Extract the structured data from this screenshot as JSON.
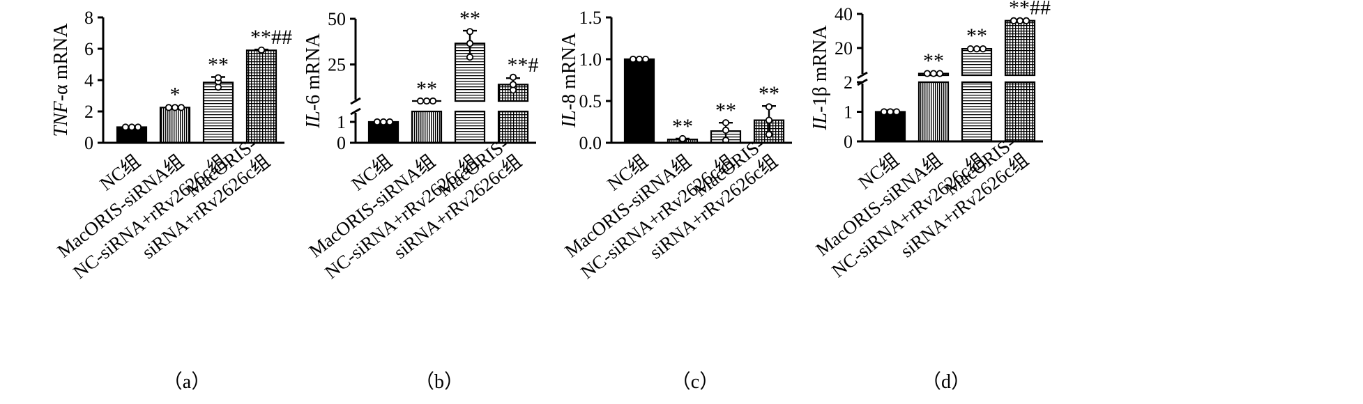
{
  "chart_data": [
    {
      "type": "bar",
      "panel_label": "（a）",
      "ylabel": {
        "italic": "TNF",
        "rest": "-α mRNA"
      },
      "categories": [
        "NC组",
        "MacORIS-siRNA组",
        "NC-siRNA+rRv2626c组",
        "MacORIS-siRNA+rRv2626c组"
      ],
      "category_lines": [
        [
          "NC组"
        ],
        [
          "MacORIS-siRNA组"
        ],
        [
          "NC-siRNA+rRv2626c组"
        ],
        [
          "MacORIS-",
          "siRNA+rRv2626c组"
        ]
      ],
      "values": [
        1.0,
        2.25,
        3.85,
        5.9
      ],
      "errors": [
        0.05,
        0.05,
        0.35,
        0.05
      ],
      "points": [
        [
          1.0,
          1.0,
          1.0
        ],
        [
          2.25,
          2.25,
          2.25
        ],
        [
          3.55,
          3.9,
          4.15
        ],
        [
          5.88,
          5.9,
          5.92
        ]
      ],
      "significance": [
        "",
        "*",
        "**",
        "**##"
      ],
      "ylim": [
        0,
        8
      ],
      "yticks": [
        0,
        2,
        4,
        6,
        8
      ],
      "ytick_labels": [
        "0",
        "2",
        "4",
        "6",
        "8"
      ]
    },
    {
      "type": "bar",
      "panel_label": "（b）",
      "ylabel": {
        "italic": "IL",
        "rest": "-6 mRNA"
      },
      "categories": [
        "NC组",
        "MacORIS-siRNA组",
        "NC-siRNA+rRv2626c组",
        "MacORIS-siRNA+rRv2626c组"
      ],
      "category_lines": [
        [
          "NC组"
        ],
        [
          "MacORIS-siRNA组"
        ],
        [
          "NC-siRNA+rRv2626c组"
        ],
        [
          "MacORIS-",
          "siRNA+rRv2626c组"
        ]
      ],
      "values": [
        1.0,
        4.5,
        36.5,
        14.0
      ],
      "errors": [
        0.05,
        0.3,
        7.0,
        3.5
      ],
      "points": [
        [
          1.0,
          1.0,
          1.0
        ],
        [
          4.5,
          4.5,
          4.5
        ],
        [
          29.0,
          36.5,
          43.0
        ],
        [
          11.0,
          14.0,
          18.0
        ]
      ],
      "significance": [
        "",
        "**",
        "**",
        "**#"
      ],
      "axis_break": {
        "lower": [
          0,
          1.5
        ],
        "upper": [
          5,
          50
        ]
      },
      "yticks": [
        0,
        1,
        25,
        50
      ],
      "ytick_labels": [
        "0",
        "1",
        "25",
        "50"
      ]
    },
    {
      "type": "bar",
      "panel_label": "（c）",
      "ylabel": {
        "italic": "IL",
        "rest": "-8 mRNA"
      },
      "categories": [
        "NC组",
        "MacORIS-siRNA组",
        "NC-siRNA+rRv2626c组",
        "MacORIS-siRNA+rRv2626c组"
      ],
      "category_lines": [
        [
          "NC组"
        ],
        [
          "MacORIS-siRNA组"
        ],
        [
          "NC-siRNA+rRv2626c组"
        ],
        [
          "MacORIS-",
          "siRNA+rRv2626c组"
        ]
      ],
      "values": [
        1.0,
        0.04,
        0.14,
        0.27
      ],
      "errors": [
        0.0,
        0.01,
        0.1,
        0.17
      ],
      "points": [
        [
          1.0,
          1.0,
          1.0
        ],
        [
          0.03,
          0.04,
          0.05
        ],
        [
          0.03,
          0.15,
          0.24
        ],
        [
          0.1,
          0.27,
          0.43
        ]
      ],
      "significance": [
        "",
        "**",
        "**",
        "**"
      ],
      "ylim": [
        0,
        1.5
      ],
      "yticks": [
        0,
        0.5,
        1.0,
        1.5
      ],
      "ytick_labels": [
        "0.0",
        "0.5",
        "1.0",
        "1.5"
      ]
    },
    {
      "type": "bar",
      "panel_label": "（d）",
      "ylabel": {
        "italic": "IL",
        "rest": "-1β mRNA"
      },
      "categories": [
        "NC组",
        "MacORIS-siRNA组",
        "NC-siRNA+rRv2626c组",
        "MacORIS-siRNA+rRv2626c组"
      ],
      "category_lines": [
        [
          "NC组"
        ],
        [
          "MacORIS-siRNA组"
        ],
        [
          "NC-siRNA+rRv2626c组"
        ],
        [
          "MacORIS-",
          "siRNA+rRv2626c组"
        ]
      ],
      "values": [
        1.0,
        5.0,
        19.5,
        36.0
      ],
      "errors": [
        0.05,
        0.3,
        0.5,
        0.5
      ],
      "points": [
        [
          1.0,
          1.0,
          1.0
        ],
        [
          5.0,
          5.0,
          5.0
        ],
        [
          19.5,
          19.5,
          19.5
        ],
        [
          36.0,
          36.0,
          36.0
        ]
      ],
      "significance": [
        "",
        "**",
        "**",
        "**##"
      ],
      "axis_break": {
        "lower": [
          0,
          2
        ],
        "upper": [
          4,
          40
        ]
      },
      "yticks": [
        0,
        1,
        2,
        20,
        40
      ],
      "ytick_labels": [
        "0",
        "1",
        "2",
        "20",
        "40"
      ]
    }
  ]
}
